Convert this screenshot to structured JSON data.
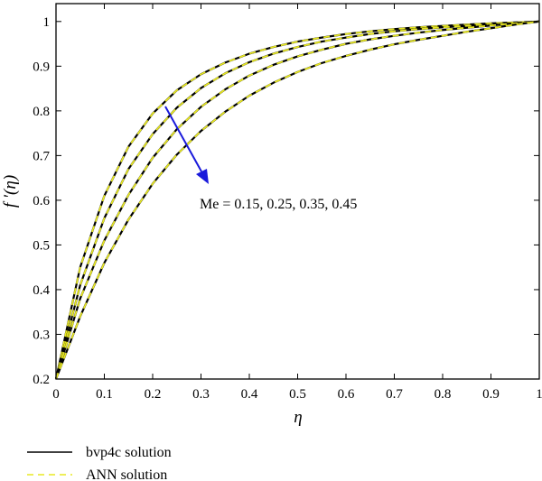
{
  "chart_data": {
    "type": "line",
    "xlabel": "η",
    "ylabel": "f ′(η)",
    "xlim": [
      0,
      1
    ],
    "ylim": [
      0.2,
      1.04
    ],
    "x_ticks": [
      "0",
      "0.1",
      "0.2",
      "0.3",
      "0.4",
      "0.5",
      "0.6",
      "0.7",
      "0.8",
      "0.9",
      "1"
    ],
    "y_ticks": [
      "0.2",
      "0.3",
      "0.4",
      "0.5",
      "0.6",
      "0.7",
      "0.8",
      "0.9",
      "1"
    ],
    "grid": false,
    "legend_position": "bottom-left",
    "annotation": "Me = 0.15, 0.25, 0.35, 0.45",
    "arrow_color": "#1a1adb",
    "x": [
      0,
      0.05,
      0.1,
      0.15,
      0.2,
      0.25,
      0.3,
      0.35,
      0.4,
      0.45,
      0.5,
      0.55,
      0.6,
      0.65,
      0.7,
      0.75,
      0.8,
      0.85,
      0.9,
      0.95,
      1.0
    ],
    "series": [
      {
        "Me": 0.15,
        "values": [
          0.2,
          0.45,
          0.61,
          0.72,
          0.794,
          0.846,
          0.882,
          0.908,
          0.928,
          0.943,
          0.955,
          0.964,
          0.972,
          0.978,
          0.983,
          0.987,
          0.99,
          0.993,
          0.996,
          0.998,
          1.0
        ]
      },
      {
        "Me": 0.25,
        "values": [
          0.2,
          0.41,
          0.56,
          0.67,
          0.748,
          0.807,
          0.851,
          0.884,
          0.909,
          0.928,
          0.943,
          0.955,
          0.964,
          0.972,
          0.978,
          0.983,
          0.987,
          0.99,
          0.993,
          0.996,
          1.0
        ]
      },
      {
        "Me": 0.35,
        "values": [
          0.2,
          0.38,
          0.51,
          0.612,
          0.695,
          0.759,
          0.809,
          0.848,
          0.879,
          0.903,
          0.922,
          0.937,
          0.95,
          0.96,
          0.968,
          0.975,
          0.981,
          0.986,
          0.991,
          0.996,
          1.0
        ]
      },
      {
        "Me": 0.45,
        "values": [
          0.2,
          0.34,
          0.46,
          0.557,
          0.637,
          0.702,
          0.755,
          0.798,
          0.834,
          0.863,
          0.887,
          0.907,
          0.923,
          0.937,
          0.949,
          0.959,
          0.968,
          0.977,
          0.985,
          0.993,
          1.0
        ]
      }
    ],
    "legend": [
      {
        "label": "bvp4c solution",
        "color": "#000000",
        "style": "solid"
      },
      {
        "label": "ANN solution",
        "color": "#e8e823",
        "style": "dashed"
      }
    ]
  }
}
